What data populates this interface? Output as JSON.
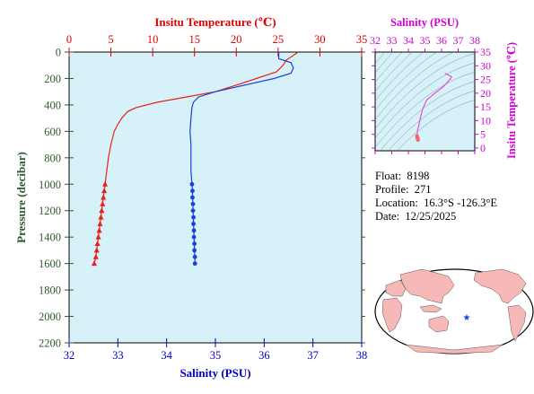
{
  "chart_data": [
    {
      "type": "line",
      "x_top_label": "Insitu Temperature (℃)",
      "x_bottom_label": "Salinity (PSU)",
      "ylabel": "Pressure (decibar)",
      "temp_lim": [
        0,
        35
      ],
      "temp_ticks": [
        "0",
        "5",
        "10",
        "15",
        "20",
        "25",
        "30",
        "35"
      ],
      "sal_lim": [
        32,
        38
      ],
      "sal_ticks": [
        "32",
        "33",
        "34",
        "35",
        "36",
        "37",
        "38"
      ],
      "pressure_lim": [
        0,
        2200
      ],
      "pressure_ticks": [
        "0",
        "200",
        "400",
        "600",
        "800",
        "1000",
        "1200",
        "1400",
        "1600",
        "1800",
        "2000",
        "2200"
      ],
      "colors": {
        "temperature": "#e8211b",
        "salinity": "#1a3fdf",
        "plot_bg": "#d6f1f8",
        "temp_axis": "#e00000",
        "sal_axis": "#0000c8",
        "pressure_axis": "#2e5a2e"
      },
      "series": [
        {
          "key": "temperature",
          "pressure": [
            5,
            60,
            100,
            150,
            200,
            250,
            300,
            340,
            380,
            420,
            450,
            500,
            550,
            600,
            700,
            800,
            900,
            1000
          ],
          "values": [
            27.3,
            26.0,
            25.6,
            24.8,
            22.4,
            20.0,
            17.5,
            14.0,
            10.5,
            8.0,
            7.0,
            6.3,
            5.8,
            5.4,
            5.0,
            4.7,
            4.5,
            4.3
          ]
        },
        {
          "key": "salinity",
          "pressure": [
            5,
            50,
            80,
            120,
            160,
            200,
            250,
            300,
            340,
            380,
            420,
            500,
            600,
            700,
            800,
            900,
            1000
          ],
          "values": [
            36.3,
            36.3,
            36.55,
            36.6,
            36.55,
            36.2,
            35.6,
            35.0,
            34.65,
            34.55,
            34.52,
            34.5,
            34.48,
            34.5,
            34.5,
            34.5,
            34.52
          ]
        }
      ],
      "bottle_temperature": {
        "pressure": [
          1000,
          1050,
          1100,
          1150,
          1200,
          1250,
          1300,
          1350,
          1400,
          1450,
          1500,
          1550,
          1600
        ],
        "values": [
          4.3,
          4.2,
          4.1,
          4.0,
          3.9,
          3.8,
          3.7,
          3.6,
          3.5,
          3.4,
          3.3,
          3.2,
          3.0
        ]
      },
      "bottle_salinity": {
        "pressure": [
          1000,
          1050,
          1100,
          1150,
          1200,
          1250,
          1300,
          1350,
          1400,
          1450,
          1500,
          1550,
          1600
        ],
        "values": [
          34.52,
          34.53,
          34.53,
          34.54,
          34.54,
          34.55,
          34.55,
          34.56,
          34.56,
          34.57,
          34.57,
          34.58,
          34.58
        ]
      }
    },
    {
      "type": "scatter",
      "title": "Salinity (PSU)",
      "ylabel": "Insitu Temperature (℃)",
      "x_lim": [
        32,
        38
      ],
      "x_ticks": [
        "32",
        "33",
        "34",
        "35",
        "36",
        "37",
        "38"
      ],
      "y_lim": [
        -1,
        35
      ],
      "y_ticks": [
        "0",
        "5",
        "10",
        "15",
        "20",
        "25",
        "30",
        "35"
      ],
      "colors": {
        "line": "#e64fd2",
        "points": "#f06a6a",
        "axis": "#d200d2",
        "contours": "#4d7d7d",
        "plot_bg": "#d6f1f8"
      },
      "ts_curve": {
        "salinity": [
          36.2,
          36.6,
          36.5,
          36.1,
          35.6,
          35.1,
          34.85,
          34.7,
          34.62,
          34.58,
          34.55,
          34.54,
          34.52
        ],
        "temperature": [
          27.3,
          26.0,
          25.0,
          22.4,
          20.0,
          17.5,
          14.0,
          10.5,
          8.0,
          7.0,
          6.3,
          5.4,
          4.3
        ]
      },
      "ts_points": {
        "salinity": [
          34.52,
          34.53,
          34.54,
          34.55,
          34.56,
          34.57,
          34.58
        ],
        "temperature": [
          4.3,
          4.1,
          3.9,
          3.7,
          3.5,
          3.3,
          3.0
        ]
      }
    }
  ],
  "info": {
    "float_label": "Float:",
    "float_value": "8198",
    "profile_label": "Profile:",
    "profile_value": "271",
    "location_label": "Location:",
    "location_value": "16.3°S  -126.3°E",
    "date_label": "Date:",
    "date_value": "12/25/2025"
  },
  "map": {
    "ocean_color": "#ffffff",
    "land_color": "#f7b8b8",
    "marker_icon": "star-icon",
    "marker_color": "#1a3fdf"
  }
}
